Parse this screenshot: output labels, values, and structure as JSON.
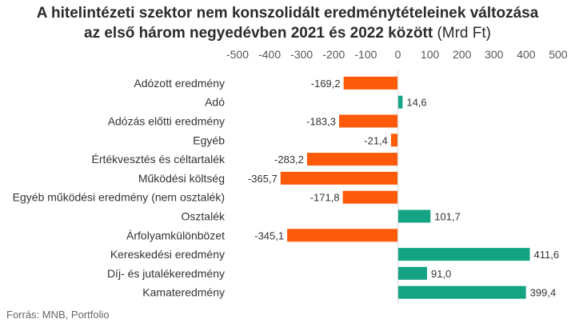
{
  "title_line1": "A hitelintézeti szektor nem konszolidált eredménytételeinek változása",
  "title_line2": "az első három negyedévben 2021 és 2022 között",
  "title_unit": "(Mrd Ft)",
  "source": "Forrás: MNB, Portfolio",
  "colors": {
    "negative": "#ff5a0a",
    "positive": "#14a383",
    "text": "#333333",
    "axis": "#555555",
    "zero_line": "#d9d9d9"
  },
  "chart_data": {
    "type": "bar",
    "orientation": "horizontal",
    "categories": [
      "Adózott eredmény",
      "Adó",
      "Adózás előtti eredmény",
      "Egyéb",
      "Értékvesztés és céltartalék",
      "Működési költség",
      "Egyéb működési eredmény (nem osztalék)",
      "Osztalék",
      "Árfolyamkülönbözet",
      "Kereskedési eredmény",
      "Díj- és jutalékeredmény",
      "Kamateredmény"
    ],
    "values": [
      -169.2,
      14.6,
      -183.3,
      -21.4,
      -283.2,
      -365.7,
      -171.8,
      101.7,
      -345.1,
      411.6,
      91.0,
      399.4
    ],
    "value_labels": [
      "-169,2",
      "14,6",
      "-183,3",
      "-21,4",
      "-283,2",
      "-365,7",
      "-171,8",
      "101,7",
      "-345,1",
      "411,6",
      "91,0",
      "399,4"
    ],
    "xlim": [
      -500,
      500
    ],
    "xticks": [
      -500,
      -400,
      -300,
      -200,
      -100,
      0,
      100,
      200,
      300,
      400,
      500
    ],
    "xtick_labels": [
      "-500",
      "-400",
      "-300",
      "-200",
      "-100",
      "0",
      "100",
      "200",
      "300",
      "400",
      "500"
    ],
    "x_axis_position": "top",
    "grid": false,
    "legend": "none"
  }
}
